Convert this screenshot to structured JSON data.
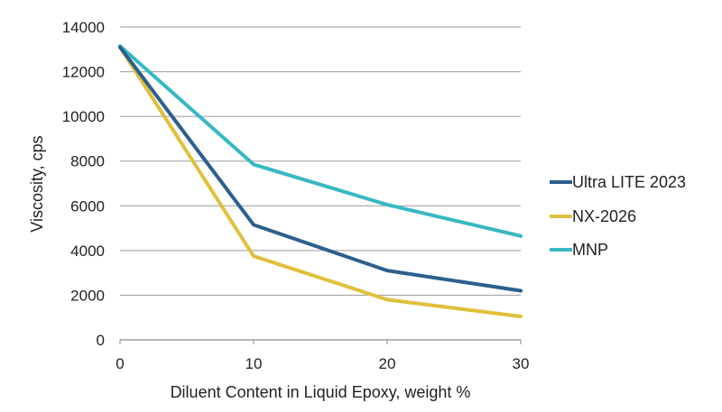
{
  "chart_data": {
    "type": "line",
    "x": [
      0,
      10,
      20,
      30
    ],
    "xlabel": "Diluent Content in Liquid Epoxy, weight %",
    "ylabel": "Viscosity, cps",
    "xlim": [
      0,
      30
    ],
    "ylim": [
      0,
      14000
    ],
    "xticks": [
      "0",
      "10",
      "20",
      "30"
    ],
    "yticks": [
      "0",
      "2000",
      "4000",
      "6000",
      "8000",
      "10000",
      "12000",
      "14000"
    ],
    "grid": "horizontal",
    "legend_position": "right",
    "series": [
      {
        "name": "Ultra LITE 2023",
        "color": "#2b5f8e",
        "values": [
          13100,
          5150,
          3100,
          2200
        ]
      },
      {
        "name": "NX-2026",
        "color": "#e0c03a",
        "values": [
          13100,
          3750,
          1800,
          1050
        ]
      },
      {
        "name": "MNP",
        "color": "#37b8c4",
        "values": [
          13150,
          7850,
          6050,
          4650
        ]
      }
    ]
  }
}
